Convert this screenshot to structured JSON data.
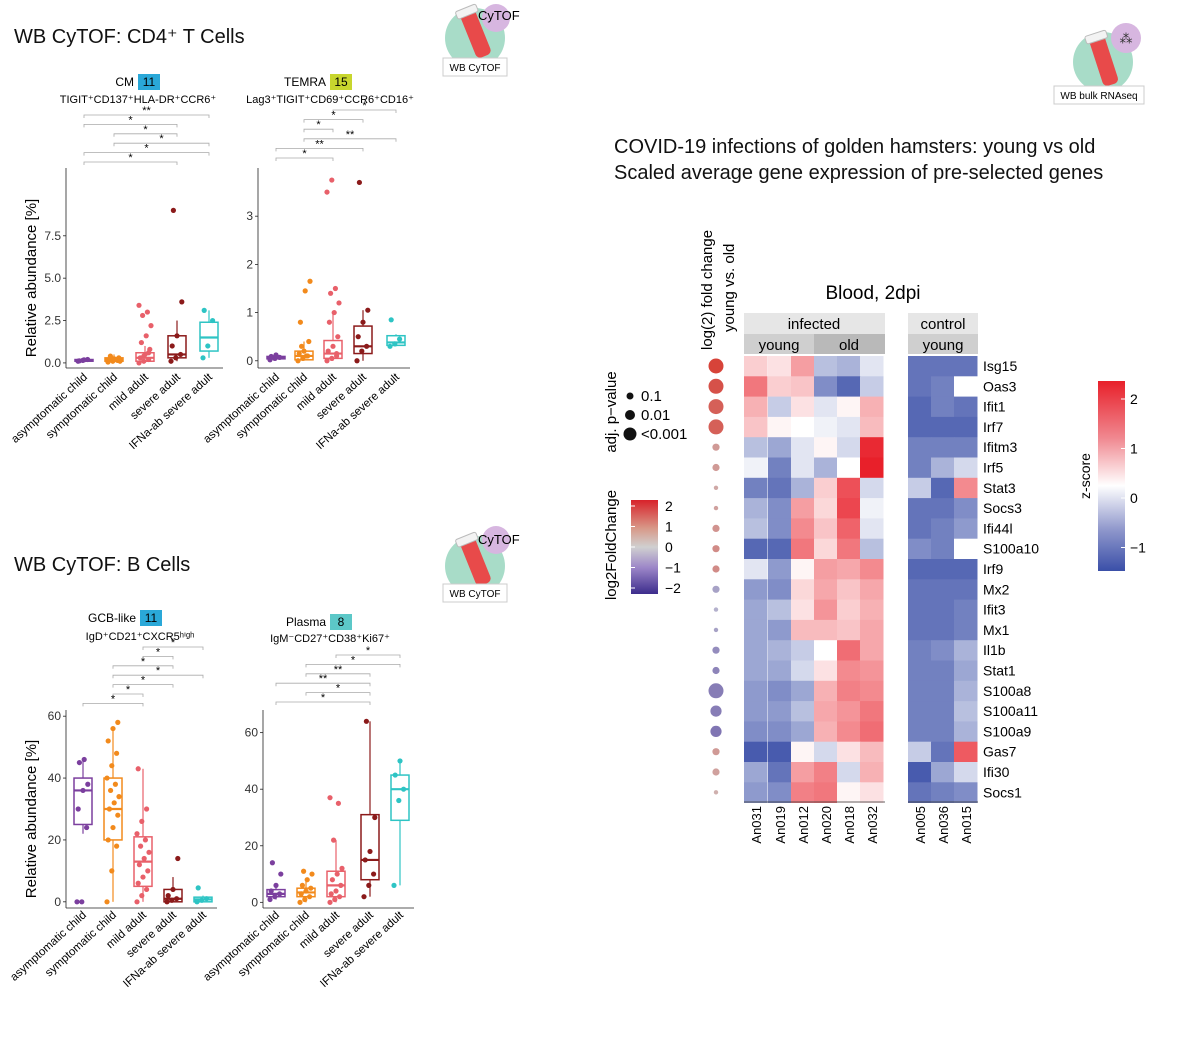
{
  "colors": {
    "asymptomatic": "#7b3f9e",
    "symptomatic": "#f28a1c",
    "mild": "#e8606a",
    "severe": "#8b1a1a",
    "ifna": "#2ec4c4",
    "teal_bg": "#a8dcc8",
    "tube": "#e84a4a",
    "badge_blue": "#2aa8d8",
    "badge_lime": "#c8d62e",
    "badge_teal": "#5cc8c8",
    "heat_high": "#e8202a",
    "heat_mid": "#ffffff",
    "heat_low": "#3a4fa8"
  },
  "headers": {
    "tcells": "WB CyTOF: CD4⁺ T Cells",
    "bcells": "WB CyTOF: B Cells",
    "covid_line1": "COVID-19 infections of golden hamsters: young vs old",
    "covid_line2": "Scaled average gene expression of pre-selected genes"
  },
  "icons": {
    "cytof_label": "CyTOF",
    "cytof_caption": "WB CyTOF",
    "rnaseq_caption": "WB bulk RNAseq",
    "rnaseq_mark": "⁂"
  },
  "groups": [
    "asymptomatic child",
    "symptomatic child",
    "mild adult",
    "severe adult",
    "IFNa-ab severe adult"
  ],
  "chart_data": [
    {
      "type": "box",
      "id": "cm",
      "title_label": "CM",
      "badge": "11",
      "subtitle": "TIGIT⁺CD137⁺HLA-DR⁺CCR6⁺",
      "ylabel": "Relative abundance [%]",
      "ylim": [
        -0.3,
        11.5
      ],
      "yticks": [
        0.0,
        2.5,
        5.0,
        7.5
      ],
      "yticklabels": [
        "0.0",
        "2.5",
        "5.0",
        "7.5"
      ],
      "boxes": [
        {
          "q1": 0.1,
          "median": 0.15,
          "q3": 0.2,
          "low": 0.05,
          "high": 0.3
        },
        {
          "q1": 0.1,
          "median": 0.2,
          "q3": 0.3,
          "low": 0.02,
          "high": 0.5
        },
        {
          "q1": 0.1,
          "median": 0.3,
          "q3": 0.6,
          "low": 0.0,
          "high": 1.0
        },
        {
          "q1": 0.3,
          "median": 0.5,
          "q3": 1.6,
          "low": 0.1,
          "high": 2.5
        },
        {
          "q1": 0.7,
          "median": 1.5,
          "q3": 2.4,
          "low": 0.3,
          "high": 3.1
        }
      ],
      "points": [
        [
          0.1,
          0.15,
          0.2,
          0.12,
          0.18
        ],
        [
          0.05,
          0.1,
          0.15,
          0.2,
          0.25,
          0.3,
          0.4,
          0.2,
          0.1
        ],
        [
          0.0,
          0.1,
          0.2,
          0.3,
          0.5,
          0.8,
          1.2,
          1.6,
          2.2,
          2.8,
          3.0,
          3.4,
          0.4,
          0.6
        ],
        [
          0.1,
          0.3,
          0.5,
          1.0,
          1.6,
          3.6,
          9.0
        ],
        [
          0.3,
          1.0,
          2.5,
          3.1
        ]
      ],
      "significance": [
        {
          "from": 0,
          "to": 4,
          "label": "**"
        },
        {
          "from": 0,
          "to": 3,
          "label": "*"
        },
        {
          "from": 1,
          "to": 3,
          "label": "*"
        },
        {
          "from": 1,
          "to": 4,
          "label": "*"
        },
        {
          "from": 0,
          "to": 4,
          "label": "*"
        },
        {
          "from": 0,
          "to": 3,
          "label": "*"
        }
      ]
    },
    {
      "type": "box",
      "id": "temra",
      "title_label": "TEMRA",
      "badge": "15",
      "subtitle": "Lag3⁺TIGIT⁺CD69⁺CCR6⁺CD16⁺",
      "ylabel": "",
      "ylim": [
        -0.15,
        4.0
      ],
      "yticks": [
        0,
        1,
        2,
        3
      ],
      "yticklabels": [
        "0",
        "1",
        "2",
        "3"
      ],
      "boxes": [
        {
          "q1": 0.04,
          "median": 0.06,
          "q3": 0.09,
          "low": 0.0,
          "high": 0.12
        },
        {
          "q1": 0.02,
          "median": 0.1,
          "q3": 0.2,
          "low": 0.0,
          "high": 0.4
        },
        {
          "q1": 0.05,
          "median": 0.15,
          "q3": 0.42,
          "low": 0.0,
          "high": 1.0
        },
        {
          "q1": 0.15,
          "median": 0.3,
          "q3": 0.72,
          "low": 0.0,
          "high": 1.05
        },
        {
          "q1": 0.32,
          "median": 0.38,
          "q3": 0.52,
          "low": 0.3,
          "high": 0.55
        }
      ],
      "points": [
        [
          0.02,
          0.05,
          0.07,
          0.09,
          0.12
        ],
        [
          0.0,
          0.05,
          0.1,
          0.15,
          0.2,
          0.4,
          0.8,
          1.45,
          1.65,
          0.3,
          0.1
        ],
        [
          0.0,
          0.05,
          0.1,
          0.2,
          0.3,
          0.5,
          0.8,
          1.0,
          1.2,
          1.4,
          1.5,
          3.5,
          3.75,
          0.15
        ],
        [
          0.0,
          0.2,
          0.3,
          0.5,
          0.8,
          1.05,
          3.7
        ],
        [
          0.3,
          0.35,
          0.45,
          0.85
        ]
      ],
      "significance": [
        {
          "from": 2,
          "to": 4,
          "label": "*"
        },
        {
          "from": 1,
          "to": 3,
          "label": "*"
        },
        {
          "from": 1,
          "to": 2,
          "label": "*"
        },
        {
          "from": 1,
          "to": 4,
          "label": "**"
        },
        {
          "from": 0,
          "to": 3,
          "label": "**"
        },
        {
          "from": 0,
          "to": 2,
          "label": "*"
        }
      ]
    },
    {
      "type": "box",
      "id": "gcb",
      "title_label": "GCB-like",
      "badge": "11",
      "subtitle": "IgD⁺CD21⁺CXCR5ʰⁱᵍʰ",
      "ylabel": "Relative abundance [%]",
      "ylim": [
        -2,
        62
      ],
      "yticks": [
        0,
        20,
        40,
        60
      ],
      "yticklabels": [
        "0",
        "20",
        "40",
        "60"
      ],
      "boxes": [
        {
          "q1": 25,
          "median": 36,
          "q3": 40,
          "low": 22,
          "high": 46
        },
        {
          "q1": 20,
          "median": 30,
          "q3": 40,
          "low": 0,
          "high": 56
        },
        {
          "q1": 5,
          "median": 13,
          "q3": 21,
          "low": 0,
          "high": 43
        },
        {
          "q1": 0,
          "median": 1,
          "q3": 4,
          "low": 0,
          "high": 8
        },
        {
          "q1": 0,
          "median": 0.8,
          "q3": 1.5,
          "low": 0,
          "high": 2
        }
      ],
      "points": [
        [
          0,
          0,
          24,
          30,
          36,
          38,
          45,
          46
        ],
        [
          0,
          10,
          18,
          20,
          24,
          28,
          30,
          32,
          34,
          36,
          38,
          40,
          44,
          48,
          52,
          56,
          58
        ],
        [
          0,
          2,
          4,
          6,
          8,
          10,
          12,
          14,
          16,
          18,
          20,
          22,
          26,
          30,
          43
        ],
        [
          0,
          0.5,
          1,
          2,
          4,
          14
        ],
        [
          0,
          0.5,
          1,
          4.5
        ]
      ],
      "significance": [
        {
          "from": 2,
          "to": 4,
          "label": "*"
        },
        {
          "from": 2,
          "to": 3,
          "label": "*"
        },
        {
          "from": 1,
          "to": 3,
          "label": "*"
        },
        {
          "from": 1,
          "to": 4,
          "label": "*"
        },
        {
          "from": 1,
          "to": 3,
          "label": "*"
        },
        {
          "from": 1,
          "to": 2,
          "label": "*"
        },
        {
          "from": 0,
          "to": 2,
          "label": "*"
        }
      ]
    },
    {
      "type": "box",
      "id": "plasma",
      "title_label": "Plasma",
      "badge": "8",
      "subtitle": "IgM⁻CD27⁺CD38⁺Ki67⁺",
      "ylabel": "",
      "ylim": [
        -2,
        68
      ],
      "yticks": [
        0,
        20,
        40,
        60
      ],
      "yticklabels": [
        "0",
        "20",
        "40",
        "60"
      ],
      "boxes": [
        {
          "q1": 2,
          "median": 3,
          "q3": 4.5,
          "low": 1,
          "high": 6
        },
        {
          "q1": 2,
          "median": 3.5,
          "q3": 5,
          "low": 0,
          "high": 8
        },
        {
          "q1": 2,
          "median": 6,
          "q3": 11,
          "low": 0,
          "high": 22
        },
        {
          "q1": 8,
          "median": 15,
          "q3": 31,
          "low": 2,
          "high": 64
        },
        {
          "q1": 29,
          "median": 40,
          "q3": 45,
          "low": 6,
          "high": 50
        }
      ],
      "points": [
        [
          1,
          2,
          3,
          4,
          6,
          10,
          14
        ],
        [
          0,
          1,
          2,
          3,
          4,
          5,
          6,
          8,
          10,
          11
        ],
        [
          0,
          1,
          2,
          3,
          4,
          6,
          8,
          10,
          12,
          22,
          35,
          37
        ],
        [
          2,
          6,
          10,
          15,
          18,
          30,
          64
        ],
        [
          6,
          36,
          40,
          45,
          50
        ]
      ],
      "significance": [
        {
          "from": 2,
          "to": 4,
          "label": "*"
        },
        {
          "from": 1,
          "to": 4,
          "label": "*"
        },
        {
          "from": 1,
          "to": 3,
          "label": "**"
        },
        {
          "from": 0,
          "to": 3,
          "label": "**"
        },
        {
          "from": 1,
          "to": 3,
          "label": "*"
        },
        {
          "from": 0,
          "to": 3,
          "label": "*"
        }
      ]
    },
    {
      "type": "heatmap",
      "id": "hamster",
      "title": "Blood, 2dpi",
      "strip_top": [
        "infected",
        "control"
      ],
      "strip_sub": [
        "young",
        "old",
        "young"
      ],
      "columns": [
        "An031",
        "An019",
        "An012",
        "An020",
        "An018",
        "An032",
        "An005",
        "An036",
        "An015"
      ],
      "rows": [
        "Isg15",
        "Oas3",
        "Ifit1",
        "Irf7",
        "Ifitm3",
        "Irf5",
        "Stat3",
        "Socs3",
        "Ifi44l",
        "S100a10",
        "Irf9",
        "Mx2",
        "Ifit3",
        "Mx1",
        "Il1b",
        "Stat1",
        "S100a8",
        "S100a11",
        "S100a9",
        "Gas7",
        "Ifi30",
        "Socs1"
      ],
      "values": [
        [
          0.5,
          0.3,
          1.0,
          -0.5,
          -0.6,
          -0.2,
          -1.1,
          -1.1,
          -1.1
        ],
        [
          1.4,
          0.5,
          0.6,
          -0.9,
          -1.2,
          -0.4,
          -1.1,
          -1.0,
          0.0
        ],
        [
          0.8,
          -0.4,
          0.3,
          -0.2,
          0.1,
          0.8,
          -1.2,
          -1.0,
          -1.1
        ],
        [
          0.6,
          0.1,
          0.0,
          -0.1,
          -0.2,
          0.7,
          -1.2,
          -1.2,
          -1.2
        ],
        [
          -0.5,
          -0.7,
          -0.2,
          0.1,
          -0.3,
          2.2,
          -1.0,
          -1.0,
          -1.0
        ],
        [
          -0.1,
          -1.0,
          -0.2,
          -0.6,
          0.0,
          2.3,
          -1.0,
          -0.6,
          -0.3
        ],
        [
          -1.0,
          -1.1,
          -0.6,
          0.5,
          1.8,
          -0.3,
          -0.4,
          -1.2,
          1.2
        ],
        [
          -0.6,
          -0.9,
          1.0,
          0.4,
          1.9,
          -0.1,
          -1.1,
          -1.1,
          -0.9
        ],
        [
          -0.5,
          -0.9,
          1.2,
          0.6,
          1.6,
          -0.2,
          -1.1,
          -1.0,
          -0.8
        ],
        [
          -1.2,
          -1.2,
          1.4,
          0.4,
          1.4,
          -0.5,
          -0.9,
          -1.0,
          0.0
        ],
        [
          -0.2,
          -0.8,
          0.1,
          1.0,
          0.9,
          1.2,
          -1.2,
          -1.2,
          -1.2
        ],
        [
          -0.8,
          -0.9,
          0.4,
          0.9,
          0.6,
          0.9,
          -1.1,
          -1.1,
          -1.1
        ],
        [
          -0.7,
          -0.5,
          0.3,
          1.1,
          0.5,
          0.8,
          -1.1,
          -1.1,
          -1.0
        ],
        [
          -0.7,
          -0.8,
          0.7,
          0.7,
          0.6,
          0.9,
          -1.1,
          -1.1,
          -1.0
        ],
        [
          -0.7,
          -0.6,
          -0.4,
          0.0,
          1.5,
          0.9,
          -1.0,
          -0.9,
          -0.6
        ],
        [
          -0.7,
          -0.7,
          -0.3,
          0.3,
          1.2,
          1.1,
          -1.0,
          -1.0,
          -0.7
        ],
        [
          -0.8,
          -0.9,
          -0.7,
          0.8,
          1.3,
          1.2,
          -1.0,
          -1.0,
          -0.6
        ],
        [
          -0.8,
          -0.8,
          -0.5,
          0.9,
          1.1,
          1.4,
          -1.0,
          -1.0,
          -0.5
        ],
        [
          -0.9,
          -0.9,
          -0.7,
          0.8,
          1.2,
          1.5,
          -1.0,
          -1.0,
          -0.6
        ],
        [
          -1.3,
          -1.3,
          0.1,
          -0.3,
          0.3,
          0.7,
          -0.4,
          -1.1,
          1.7
        ],
        [
          -0.7,
          -1.1,
          1.0,
          1.3,
          -0.3,
          0.8,
          -1.3,
          -0.7,
          -0.3
        ],
        [
          -0.8,
          -0.9,
          1.3,
          1.4,
          0.1,
          0.3,
          -1.1,
          -1.0,
          -0.9
        ]
      ],
      "logfc": [
        1.9,
        1.7,
        1.5,
        1.5,
        0.7,
        0.7,
        0.5,
        0.6,
        0.8,
        0.9,
        0.9,
        -0.5,
        -0.3,
        -0.5,
        -0.8,
        -0.9,
        -1.0,
        -1.0,
        -1.1,
        0.7,
        0.6,
        0.4
      ],
      "padj_size": [
        3,
        3,
        3,
        3,
        1,
        1,
        0,
        0,
        1,
        1,
        1,
        1,
        0,
        0,
        1,
        1,
        3,
        2,
        2,
        1,
        1,
        0
      ],
      "zscore_label": "z-score",
      "zscore_ticks": [
        2,
        1,
        0,
        -1
      ],
      "zscore_ticklabels": [
        "2",
        "1",
        "0",
        "−1"
      ],
      "lfc_label": "log2FoldChange",
      "lfc_ticks": [
        2,
        1,
        0,
        -1,
        -2
      ],
      "lfc_ticklabels": [
        "2",
        "1",
        "0",
        "−1",
        "−2"
      ],
      "padj_label": "adj. p−value",
      "padj_levels": [
        "0.1",
        "0.01",
        "<0.001"
      ],
      "lfc_header_line1": "log(2) fold change",
      "lfc_header_line2": "young vs. old"
    }
  ]
}
